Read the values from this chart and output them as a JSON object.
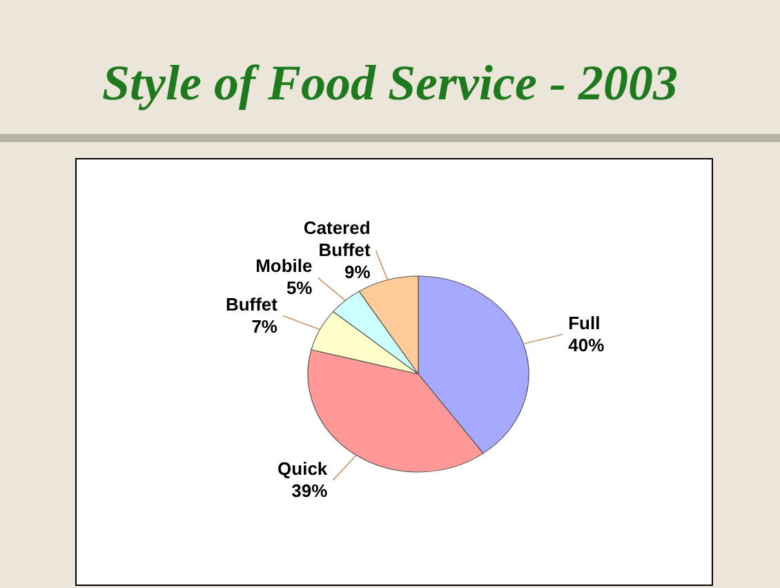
{
  "chart_data": {
    "type": "pie",
    "title": "Style of Food Service - 2003",
    "categories": [
      "Full",
      "Quick",
      "Buffet",
      "Mobile",
      "Catered Buffet"
    ],
    "values": [
      40,
      39,
      7,
      5,
      9
    ],
    "colors": [
      "#a6aaff",
      "#ff9896",
      "#ffffcc",
      "#ccffff",
      "#ffcc99"
    ],
    "value_labels": [
      "40%",
      "39%",
      "7%",
      "5%",
      "9%"
    ]
  }
}
